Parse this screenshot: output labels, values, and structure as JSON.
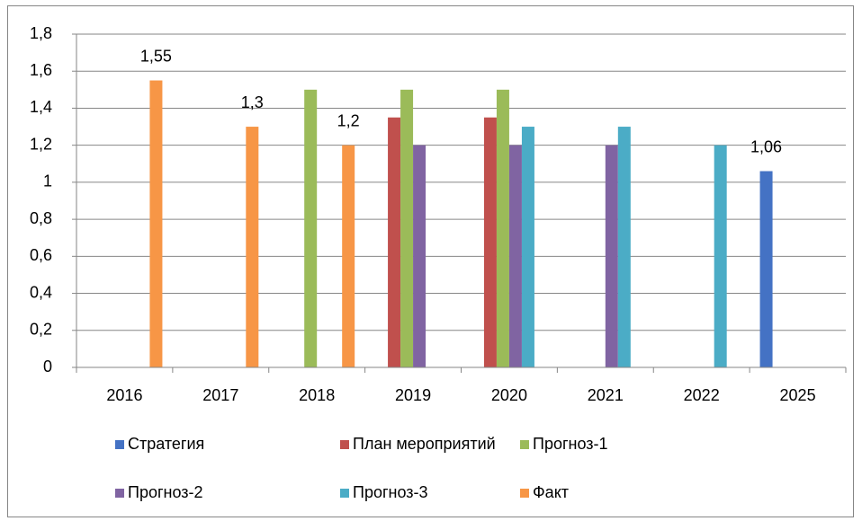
{
  "chart_data": {
    "type": "bar",
    "categories": [
      "2016",
      "2017",
      "2018",
      "2019",
      "2020",
      "2021",
      "2022",
      "2025"
    ],
    "series": [
      {
        "name": "Стратегия",
        "color": "#4472c4",
        "values": [
          null,
          null,
          null,
          null,
          null,
          null,
          null,
          1.06
        ],
        "value_labels": [
          null,
          null,
          null,
          null,
          null,
          null,
          null,
          "1,06"
        ]
      },
      {
        "name": "План мероприятий",
        "color": "#c0504d",
        "values": [
          null,
          null,
          null,
          1.35,
          1.35,
          null,
          null,
          null
        ]
      },
      {
        "name": "Прогноз-1",
        "color": "#9bbb59",
        "values": [
          null,
          null,
          1.5,
          1.5,
          1.5,
          null,
          null,
          null
        ]
      },
      {
        "name": "Прогноз-2",
        "color": "#8064a2",
        "values": [
          null,
          null,
          null,
          1.2,
          1.2,
          1.2,
          null,
          null
        ]
      },
      {
        "name": "Прогноз-3",
        "color": "#4bacc6",
        "values": [
          null,
          null,
          null,
          null,
          1.3,
          1.3,
          1.2,
          null
        ]
      },
      {
        "name": "Факт",
        "color": "#f79646",
        "values": [
          1.55,
          1.3,
          1.2,
          null,
          null,
          null,
          null,
          null
        ],
        "value_labels": [
          "1,55",
          "1,3",
          "1,2",
          null,
          null,
          null,
          null,
          null
        ]
      }
    ],
    "ylim": [
      0,
      1.8
    ],
    "yticks": [
      0,
      {
        "value": 0.2,
        "label": "0,2"
      },
      {
        "value": 0.4,
        "label": "0,4"
      },
      {
        "value": 0.6,
        "label": "0,6"
      },
      {
        "value": 0.8,
        "label": "0,8"
      },
      1,
      {
        "value": 1.2,
        "label": "1,2"
      },
      {
        "value": 1.4,
        "label": "1,4"
      },
      {
        "value": 1.6,
        "label": "1,6"
      },
      {
        "value": 1.8,
        "label": "1,8"
      }
    ],
    "grid": true,
    "legend": "bottom"
  }
}
